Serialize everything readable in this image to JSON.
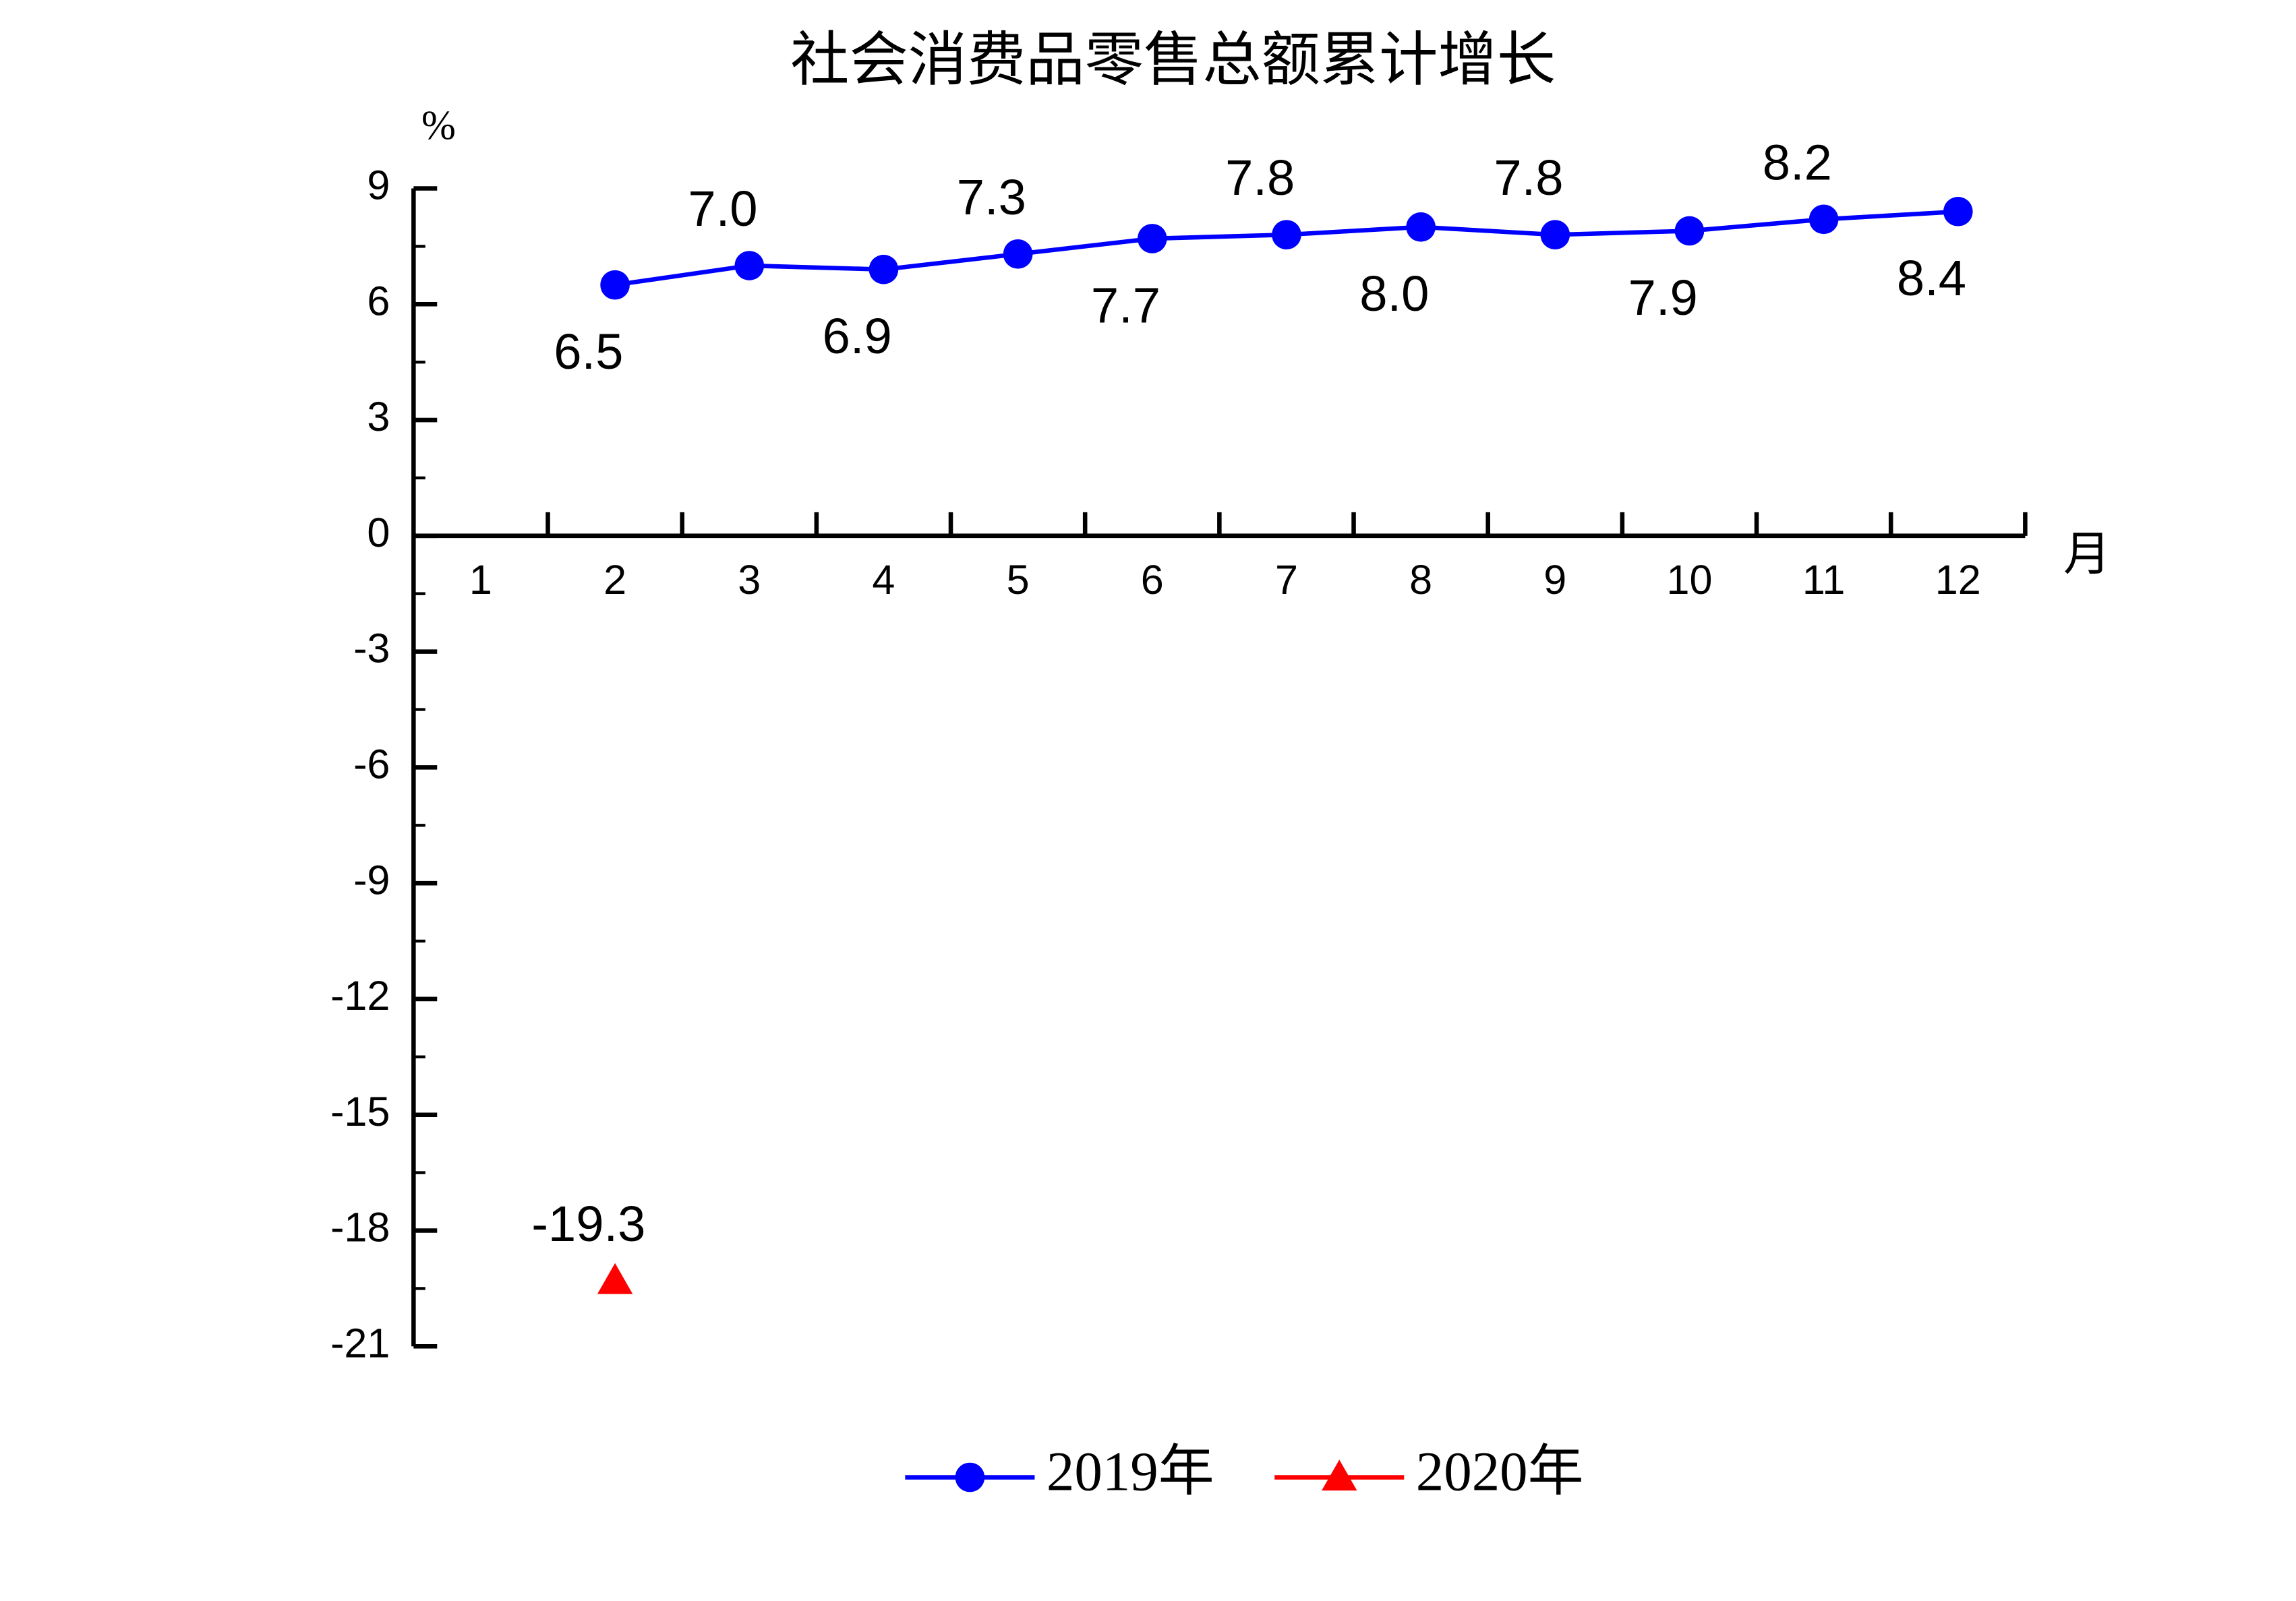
{
  "chart_data": {
    "type": "line",
    "title": "社会消费品零售总额累计增长",
    "y_axis_label": "%",
    "x_axis_label": "月",
    "categories": [
      "1",
      "2",
      "3",
      "4",
      "5",
      "6",
      "7",
      "8",
      "9",
      "10",
      "11",
      "12"
    ],
    "series": [
      {
        "name": "2019年",
        "color": "#0000ff",
        "marker": "circle",
        "values": [
          null,
          6.5,
          7.0,
          6.9,
          7.3,
          7.7,
          7.8,
          8.0,
          7.8,
          7.9,
          8.2,
          8.4
        ],
        "value_labels": [
          null,
          "6.5",
          "7.0",
          "6.9",
          "7.3",
          "7.7",
          "7.8",
          "8.0",
          "7.8",
          "7.9",
          "8.2",
          "8.4"
        ]
      },
      {
        "name": "2020年",
        "color": "#ff0000",
        "marker": "triangle",
        "values": [
          null,
          -19.3,
          null,
          null,
          null,
          null,
          null,
          null,
          null,
          null,
          null,
          null
        ]
      }
    ],
    "ylim": [
      -21,
      9
    ],
    "yticks": [
      9,
      6,
      3,
      0,
      -3,
      -6,
      -9,
      -12,
      -15,
      -18,
      -21
    ],
    "grid": false,
    "legend": "bottom"
  }
}
